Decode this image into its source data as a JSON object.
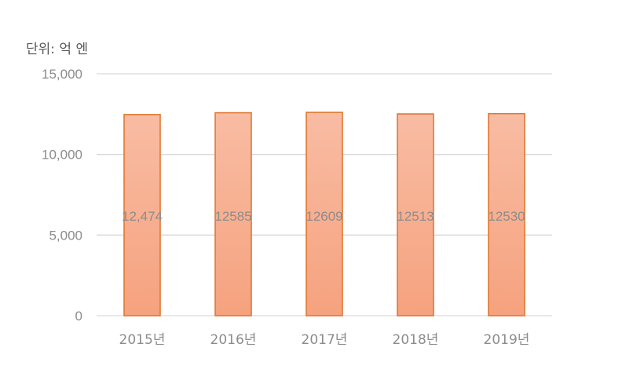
{
  "chart_data": {
    "type": "bar",
    "unit_label": "단위: 억 엔",
    "categories": [
      "2015년",
      "2016년",
      "2017년",
      "2018년",
      "2019년"
    ],
    "values": [
      12474,
      12585,
      12609,
      12513,
      12530
    ],
    "data_labels": [
      "12,474",
      "12585",
      "12609",
      "12513",
      "12530"
    ],
    "yticks": [
      "0",
      "5,000",
      "10,000",
      "15,000"
    ],
    "ytick_values": [
      0,
      5000,
      10000,
      15000
    ],
    "ylim": [
      0,
      15000
    ],
    "grid": true,
    "bar_fill_top": "#f8bca3",
    "bar_fill_bottom": "#f6a27e",
    "bar_stroke": "#e07833",
    "gridline_color": "#d9d9d9"
  }
}
